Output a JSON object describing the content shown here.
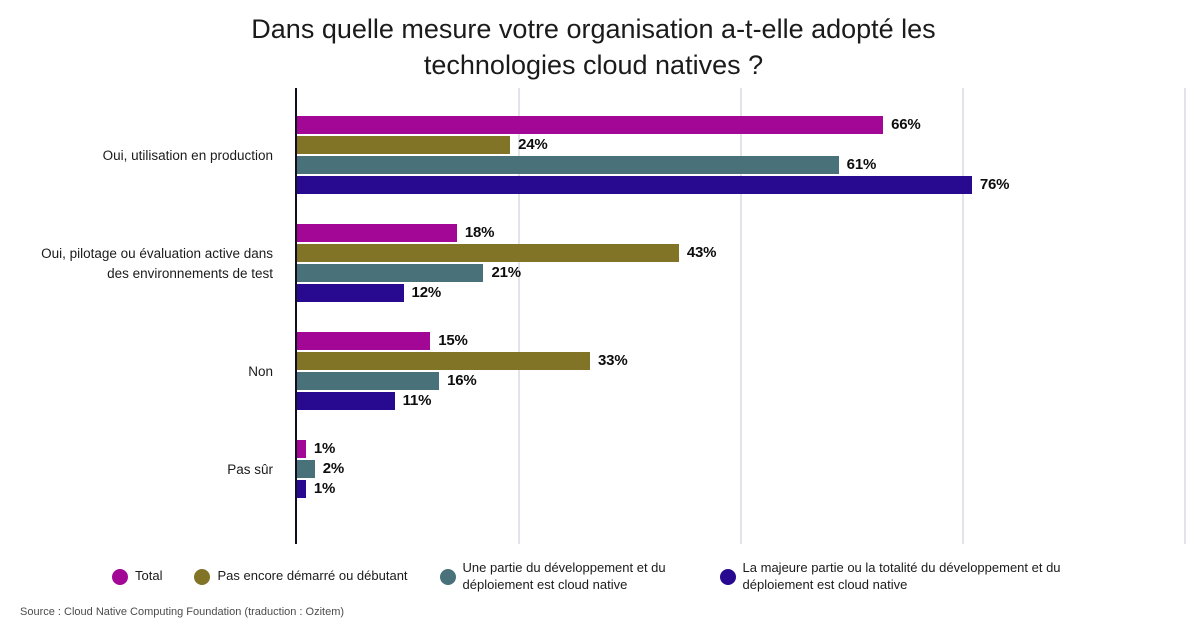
{
  "chart_data": {
    "type": "bar",
    "orientation": "horizontal",
    "title": "Dans quelle mesure votre organisation a-t-elle adopté les technologies cloud natives ?",
    "categories": [
      "Oui, utilisation en production",
      "Oui, pilotage ou évaluation active dans des environnements de test",
      "Non",
      "Pas sûr"
    ],
    "series": [
      {
        "name": "Total",
        "color": "#A30795",
        "values": [
          66,
          18,
          15,
          1
        ]
      },
      {
        "name": "Pas encore démarré ou débutant",
        "color": "#827426",
        "values": [
          24,
          43,
          33,
          null
        ]
      },
      {
        "name": "Une partie du développement et du déploiement est cloud native",
        "color": "#497179",
        "values": [
          61,
          21,
          16,
          2
        ]
      },
      {
        "name": "La majeure partie ou la totalité du développement et du déploiement est cloud native",
        "color": "#280A90",
        "values": [
          76,
          12,
          11,
          1
        ]
      }
    ],
    "xlim": [
      0,
      100
    ],
    "gridlines_percent": [
      25,
      50,
      75,
      100
    ],
    "value_suffix": "%",
    "legend_position": "bottom",
    "grid": true,
    "axis_color": "#10101e",
    "gridline_color": "#e3e3ea"
  },
  "source_note": "Source : Cloud Native Computing Foundation (traduction : Ozitem)"
}
